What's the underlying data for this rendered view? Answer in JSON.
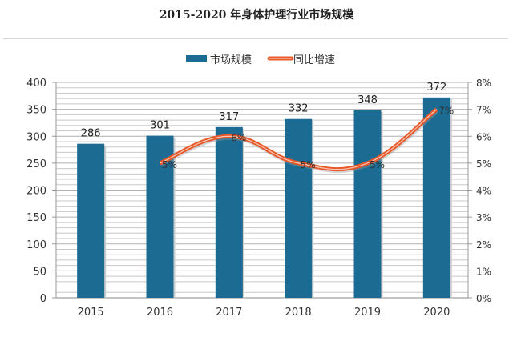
{
  "chart_data": {
    "type": "bar+line",
    "title": "2015-2020 年身体护理行业市场规模",
    "categories": [
      "2015",
      "2016",
      "2017",
      "2018",
      "2019",
      "2020"
    ],
    "series": [
      {
        "name": "市场规模",
        "type": "bar",
        "axis": "left",
        "values": [
          286,
          301,
          317,
          332,
          348,
          372
        ],
        "labels": [
          "286",
          "301",
          "317",
          "332",
          "348",
          "372"
        ],
        "color": "#1b6b93"
      },
      {
        "name": "同比增速",
        "type": "line",
        "axis": "right",
        "smooth": true,
        "values": [
          null,
          5,
          6,
          5,
          5,
          7
        ],
        "labels": [
          "",
          "5%",
          "6%",
          "5%",
          "5%",
          "7%"
        ],
        "color": "#e8582a"
      }
    ],
    "left_axis": {
      "ylim": [
        0,
        400
      ],
      "ticks": [
        "0",
        "50",
        "100",
        "150",
        "200",
        "250",
        "300",
        "350",
        "400"
      ]
    },
    "right_axis": {
      "ylim": [
        0,
        8
      ],
      "ticks": [
        "0%",
        "1%",
        "2%",
        "3%",
        "4%",
        "5%",
        "6%",
        "7%",
        "8%"
      ]
    },
    "grid": true,
    "legend": "top"
  }
}
